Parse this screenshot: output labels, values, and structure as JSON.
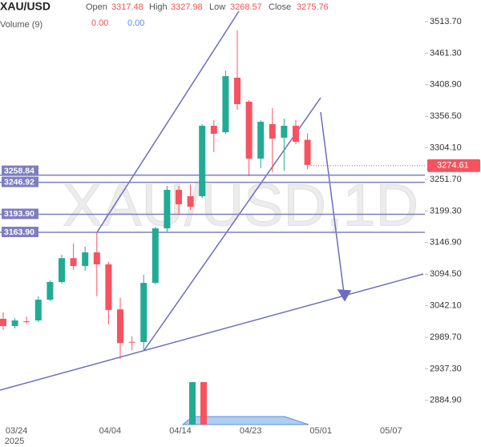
{
  "chart_data": {
    "type": "candlestick",
    "symbol": "XAU/USD",
    "watermark": "XAU/USD,1D",
    "ohlc_labels": [
      "Open",
      "High",
      "Low",
      "Close"
    ],
    "ohlc_values": [
      3317.48,
      3327.98,
      3268.57,
      3275.76
    ],
    "volume_label": "Volume (9)",
    "volume_values": [
      "0.00",
      "0.00"
    ],
    "x_year": "2025",
    "categories": [
      null,
      "03/24",
      null,
      null,
      null,
      null,
      null,
      null,
      null,
      "04/04",
      null,
      null,
      null,
      null,
      null,
      "04/14",
      null,
      null,
      null,
      null,
      null,
      "04/23",
      null,
      null,
      null,
      null,
      null,
      "05/01",
      null,
      null,
      null,
      null,
      null,
      "05/07"
    ],
    "open": [
      3020.3,
      3008.3,
      3016,
      3017.6,
      3052,
      3081.4,
      3121,
      3108,
      3130.6,
      3110.7,
      3036,
      2982,
      2981.7,
      3080,
      3170.5,
      3234.4,
      3223.8,
      3223.8,
      3340.8,
      3330,
      3420.6,
      3380.7,
      3286.3,
      3343.5,
      3321,
      3340.8,
      3317.48,
      null,
      null,
      null,
      null,
      null,
      null,
      null
    ],
    "high": [
      3030.9,
      3021.6,
      3024,
      3057.5,
      3084,
      3126.7,
      3145.3,
      3140,
      3163.9,
      3114.7,
      3054.8,
      2991,
      3093.4,
      3173,
      3241,
      3241,
      3243.7,
      3343.5,
      3350,
      3432.6,
      3499,
      3383.4,
      3350,
      3370,
      3352.8,
      3350,
      3327.98,
      null,
      null,
      null,
      null,
      null,
      null,
      null
    ],
    "low": [
      3001.6,
      3004.3,
      3012,
      3015,
      3049.5,
      3078.8,
      3101.4,
      3100,
      3057.5,
      3011,
      2953.8,
      2968.4,
      2968.4,
      3077.4,
      3163.9,
      3193.2,
      3201,
      3221,
      3297,
      3327.5,
      3367.4,
      3257,
      3270.3,
      3263.6,
      3266.3,
      3310,
      3268.57,
      null,
      null,
      null,
      null,
      null,
      null,
      null
    ],
    "close": [
      3008.3,
      3017.6,
      3015,
      3052,
      3081.4,
      3121,
      3108,
      3130.6,
      3110.7,
      3034.9,
      2980,
      2981,
      3080,
      3170.5,
      3234.4,
      3210.5,
      3206.5,
      3340.8,
      3327.5,
      3423.2,
      3376.7,
      3286.3,
      3347.4,
      3319.5,
      3340.8,
      3314,
      3275.76,
      null,
      null,
      null,
      null,
      null,
      null,
      null
    ],
    "up_color": "#22ab94",
    "down_color": "#f7525f",
    "ylim": [
      2844.7,
      3549.6
    ],
    "yticks": [
      {
        "value": 3513.7,
        "label": "3513.70"
      },
      {
        "value": 3461.3,
        "label": "3461.30"
      },
      {
        "value": 3408.9,
        "label": "3408.90"
      },
      {
        "value": 3356.5,
        "label": "3356.50"
      },
      {
        "value": 3304.1,
        "label": "3304.10"
      },
      {
        "value": 3251.7,
        "label": "3251.70"
      },
      {
        "value": 3199.3,
        "label": "3199.30"
      },
      {
        "value": 3146.9,
        "label": "3146.90"
      },
      {
        "value": 3094.5,
        "label": "3094.50"
      },
      {
        "value": 3042.1,
        "label": "3042.10"
      },
      {
        "value": 2989.7,
        "label": "2989.70"
      },
      {
        "value": 2937.3,
        "label": "2937.30"
      },
      {
        "value": 2884.9,
        "label": "2884.90"
      }
    ],
    "levels": [
      {
        "value": 3258.84,
        "label": "3258.84"
      },
      {
        "value": 3246.92,
        "label": "3246.92"
      },
      {
        "value": 3193.9,
        "label": "3193.90"
      },
      {
        "value": 3163.9,
        "label": "3163.90"
      }
    ],
    "level_color": "#7e7ec0",
    "last_price": 3274.61
  }
}
